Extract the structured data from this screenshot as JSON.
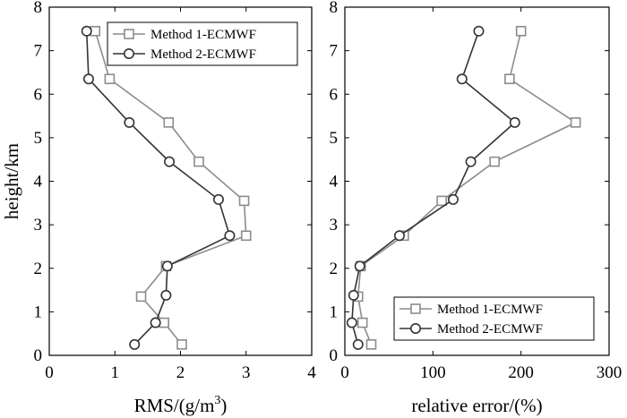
{
  "chart_data": [
    {
      "type": "line",
      "xlabel": "RMS/(g/m",
      "xlabel_sup": "3",
      "xlabel_tail": ")",
      "ylabel": "height/km",
      "xlim": [
        0,
        4
      ],
      "ylim": [
        0,
        8
      ],
      "xticks": [
        "0",
        "1",
        "2",
        "3",
        "4"
      ],
      "yticks": [
        "0",
        "1",
        "2",
        "3",
        "4",
        "5",
        "6",
        "7",
        "8"
      ],
      "legend_position": "top-right",
      "series": [
        {
          "name": "Method 1-ECMWF",
          "marker": "square",
          "color": "#8c8c8c",
          "points": [
            [
              2.02,
              0.25
            ],
            [
              1.75,
              0.75
            ],
            [
              1.4,
              1.35
            ],
            [
              1.78,
              2.05
            ],
            [
              3.0,
              2.75
            ],
            [
              2.97,
              3.55
            ],
            [
              2.28,
              4.45
            ],
            [
              1.82,
              5.35
            ],
            [
              0.92,
              6.35
            ],
            [
              0.7,
              7.45
            ]
          ]
        },
        {
          "name": "Method 2-ECMWF",
          "marker": "circle",
          "color": "#333333",
          "points": [
            [
              1.3,
              0.25
            ],
            [
              1.62,
              0.75
            ],
            [
              1.78,
              1.38
            ],
            [
              1.8,
              2.05
            ],
            [
              2.75,
              2.75
            ],
            [
              2.58,
              3.58
            ],
            [
              1.83,
              4.45
            ],
            [
              1.22,
              5.35
            ],
            [
              0.6,
              6.35
            ],
            [
              0.57,
              7.45
            ]
          ]
        }
      ]
    },
    {
      "type": "line",
      "xlabel": "relative error/(%)",
      "ylabel": "",
      "xlim": [
        0,
        300
      ],
      "ylim": [
        0,
        8
      ],
      "xticks": [
        "0",
        "100",
        "200",
        "300"
      ],
      "yticks": [
        "0",
        "1",
        "2",
        "3",
        "4",
        "5",
        "6",
        "7",
        "8"
      ],
      "legend_position": "bottom-right",
      "series": [
        {
          "name": "Method 1-ECMWF",
          "marker": "square",
          "color": "#8c8c8c",
          "points": [
            [
              30,
              0.25
            ],
            [
              20,
              0.75
            ],
            [
              15,
              1.35
            ],
            [
              18,
              2.05
            ],
            [
              67,
              2.75
            ],
            [
              110,
              3.55
            ],
            [
              170,
              4.45
            ],
            [
              262,
              5.35
            ],
            [
              187,
              6.35
            ],
            [
              200,
              7.45
            ]
          ]
        },
        {
          "name": "Method 2-ECMWF",
          "marker": "circle",
          "color": "#333333",
          "points": [
            [
              15,
              0.25
            ],
            [
              8,
              0.75
            ],
            [
              10,
              1.38
            ],
            [
              17,
              2.05
            ],
            [
              62,
              2.75
            ],
            [
              123,
              3.58
            ],
            [
              143,
              4.45
            ],
            [
              193,
              5.35
            ],
            [
              133,
              6.35
            ],
            [
              152,
              7.45
            ]
          ]
        }
      ]
    }
  ]
}
